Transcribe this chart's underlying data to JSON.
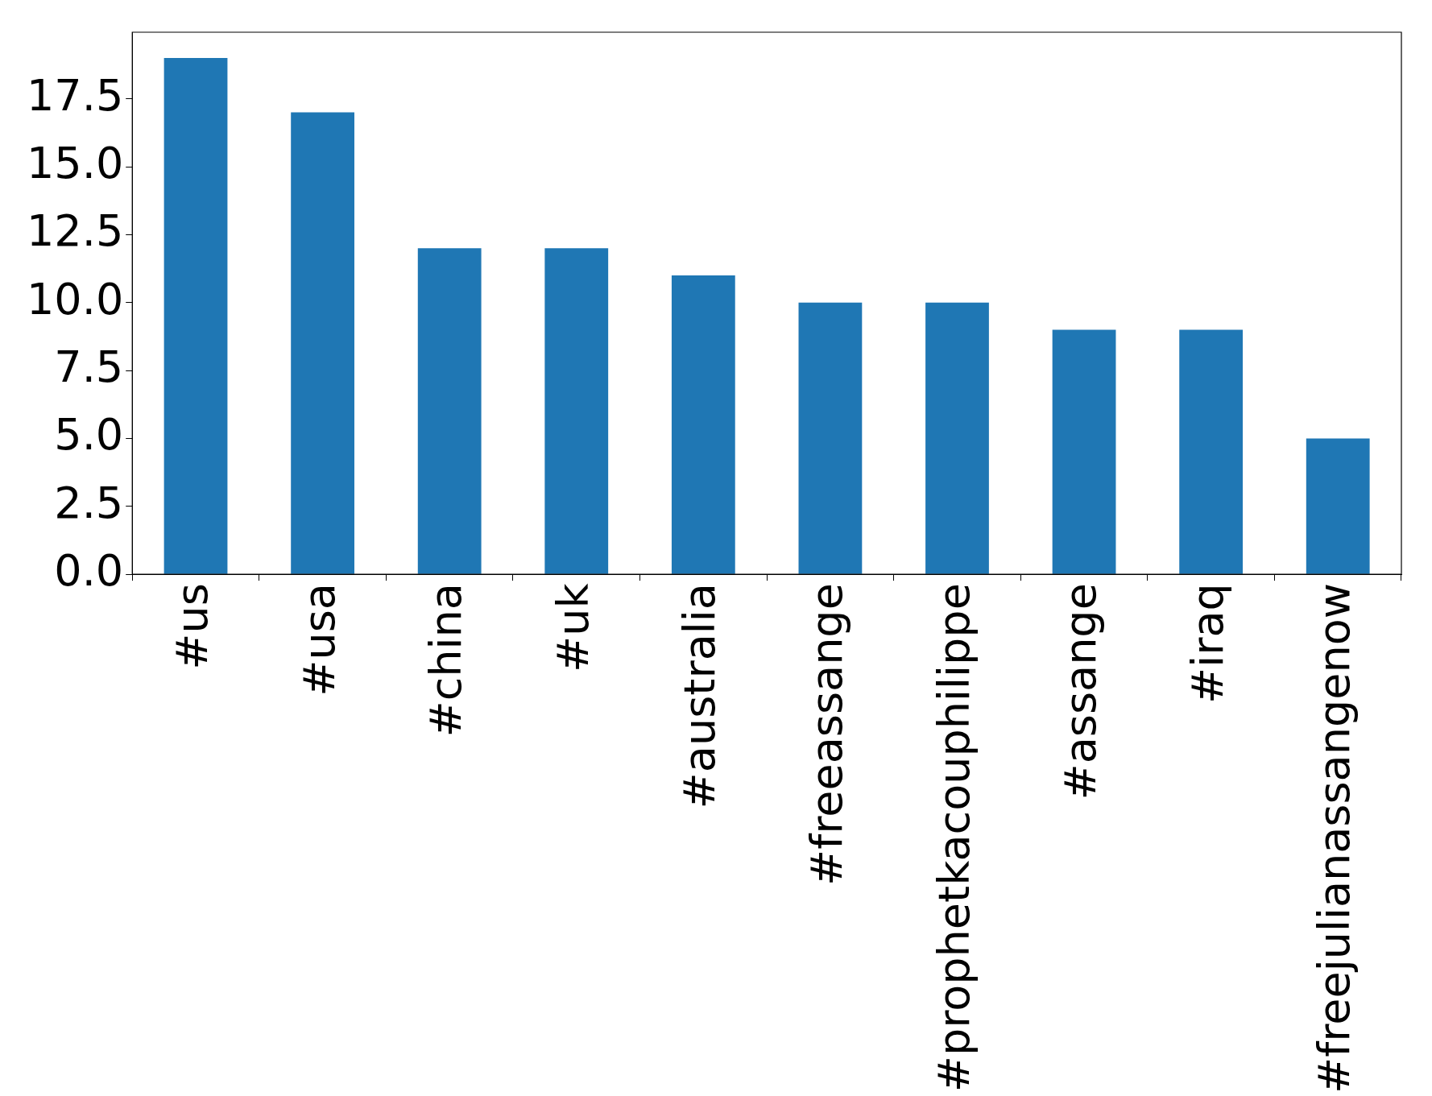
{
  "chart_data": {
    "type": "bar",
    "categories": [
      "#us",
      "#usa",
      "#china",
      "#uk",
      "#australia",
      "#freeassange",
      "#prophetkacouphilippe",
      "#assange",
      "#iraq",
      "#freejulianassangenow"
    ],
    "values": [
      19,
      17,
      12,
      12,
      11,
      10,
      10,
      9,
      9,
      5
    ],
    "color": "#1f77b4",
    "ylim": [
      0,
      19.95
    ],
    "yticks": [
      {
        "value": 0,
        "label": "0.0"
      },
      2.5,
      {
        "value": 5,
        "label": "5.0"
      },
      7.5,
      {
        "value": 10,
        "label": "10.0"
      },
      12.5,
      {
        "value": 15,
        "label": "15.0"
      },
      17.5
    ]
  }
}
